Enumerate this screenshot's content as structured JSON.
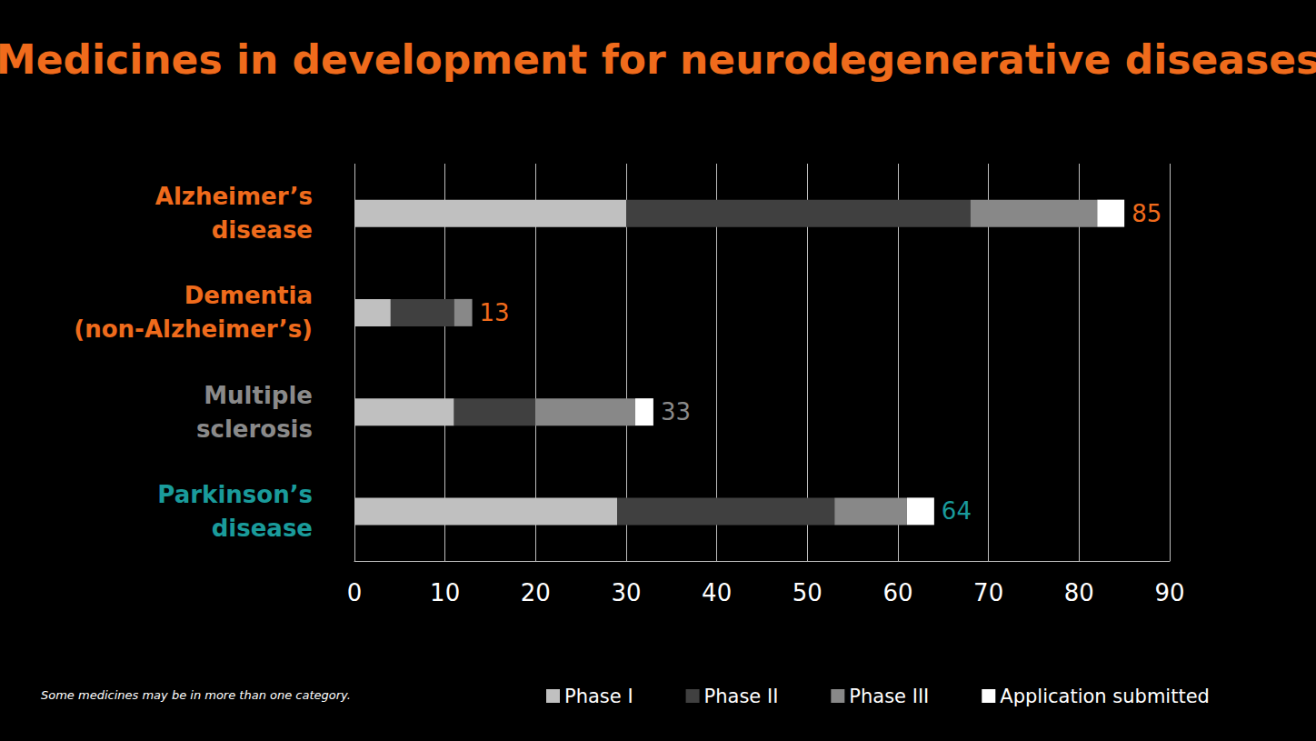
{
  "chart_data": {
    "type": "bar",
    "title": "Medicines in development for neurodegenerative diseases",
    "orientation": "horizontal",
    "stacked": true,
    "grid": true,
    "legend": "bottom",
    "note": "Some medicines may be in more than one category.",
    "categories": [
      "Alzheimer’s disease",
      "Dementia (non-Alzheimer’s)",
      "Multiple sclerosis",
      "Parkinson’s disease"
    ],
    "category_colors": [
      "#ef6b1c",
      "#ef6b1c",
      "#8a8a8a",
      "#1a9b9b"
    ],
    "series": [
      {
        "name": "Phase I",
        "color": "#c0c0c0",
        "values": [
          30,
          4,
          11,
          29
        ]
      },
      {
        "name": "Phase II",
        "color": "#404040",
        "values": [
          38,
          7,
          9,
          24
        ]
      },
      {
        "name": "Phase III",
        "color": "#888888",
        "values": [
          14,
          2,
          11,
          8
        ]
      },
      {
        "name": "Application submitted",
        "color": "#ffffff",
        "values": [
          3,
          0,
          2,
          3
        ]
      }
    ],
    "totals": [
      85,
      13,
      33,
      64
    ],
    "xlim": [
      0,
      90
    ],
    "xticks": [
      0,
      10,
      20,
      30,
      40,
      50,
      60,
      70,
      80,
      90
    ]
  }
}
